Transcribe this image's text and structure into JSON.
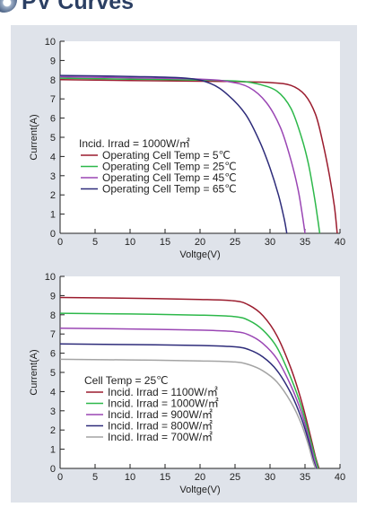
{
  "header": {
    "title": "PV Curves"
  },
  "chart_data": [
    {
      "type": "line",
      "title": "",
      "xlabel": "Voltge(V)",
      "ylabel": "Current(A)",
      "xlim": [
        0,
        40
      ],
      "ylim": [
        0,
        10
      ],
      "xticks": [
        "0",
        "5",
        "10",
        "15",
        "20",
        "25",
        "30",
        "35",
        "40"
      ],
      "yticks": [
        "0",
        "1",
        "2",
        "3",
        "4",
        "5",
        "6",
        "7",
        "8",
        "9",
        "10"
      ],
      "legend_title": "Incid. Irrad = 1000W/㎡",
      "legend_position": "lower-left",
      "grid": false,
      "series": [
        {
          "name": "Operating Cell Temp = 5℃",
          "color": "#9b1c2e",
          "points": [
            [
              0,
              8.0
            ],
            [
              10,
              7.96
            ],
            [
              20,
              7.92
            ],
            [
              25,
              7.9
            ],
            [
              30,
              7.85
            ],
            [
              33,
              7.7
            ],
            [
              35,
              7.2
            ],
            [
              36.5,
              6.2
            ],
            [
              37.5,
              4.8
            ],
            [
              38.5,
              3.0
            ],
            [
              39.2,
              1.4
            ],
            [
              39.6,
              0
            ]
          ]
        },
        {
          "name": "Operating Cell Temp = 25℃",
          "color": "#2db84a",
          "points": [
            [
              0,
              8.08
            ],
            [
              10,
              8.03
            ],
            [
              20,
              7.98
            ],
            [
              25,
              7.93
            ],
            [
              28,
              7.8
            ],
            [
              31,
              7.4
            ],
            [
              33,
              6.5
            ],
            [
              34.5,
              5.0
            ],
            [
              35.5,
              3.6
            ],
            [
              36.3,
              2.0
            ],
            [
              36.8,
              0.8
            ],
            [
              37.1,
              0
            ]
          ]
        },
        {
          "name": "Operating Cell Temp = 45℃",
          "color": "#9a46b4",
          "points": [
            [
              0,
              8.15
            ],
            [
              10,
              8.1
            ],
            [
              20,
              8.03
            ],
            [
              24,
              7.9
            ],
            [
              27,
              7.6
            ],
            [
              29.5,
              6.8
            ],
            [
              31.5,
              5.5
            ],
            [
              33,
              3.8
            ],
            [
              34,
              2.3
            ],
            [
              34.6,
              1.0
            ],
            [
              35,
              0
            ]
          ]
        },
        {
          "name": "Operating Cell Temp = 65℃",
          "color": "#2e2c7a",
          "points": [
            [
              0,
              8.22
            ],
            [
              10,
              8.17
            ],
            [
              18,
              8.08
            ],
            [
              21.5,
              7.8
            ],
            [
              24,
              7.2
            ],
            [
              26.5,
              6.2
            ],
            [
              28.5,
              4.8
            ],
            [
              30,
              3.4
            ],
            [
              31.2,
              2.0
            ],
            [
              32,
              0.8
            ],
            [
              32.4,
              0
            ]
          ]
        }
      ]
    },
    {
      "type": "line",
      "title": "",
      "xlabel": "Voltge(V)",
      "ylabel": "Current(A)",
      "xlim": [
        0,
        40
      ],
      "ylim": [
        0,
        10
      ],
      "xticks": [
        "0",
        "5",
        "10",
        "15",
        "20",
        "25",
        "30",
        "35",
        "40"
      ],
      "yticks": [
        "0",
        "1",
        "2",
        "3",
        "4",
        "5",
        "6",
        "7",
        "8",
        "9",
        "10"
      ],
      "legend_title": "Cell Temp = 25℃",
      "legend_position": "lower-left",
      "grid": false,
      "series": [
        {
          "name": "Incid. Irrad = 1100W/㎡",
          "color": "#9b1c2e",
          "points": [
            [
              0,
              8.9
            ],
            [
              10,
              8.86
            ],
            [
              20,
              8.8
            ],
            [
              25,
              8.72
            ],
            [
              27,
              8.5
            ],
            [
              29,
              7.95
            ],
            [
              31,
              6.9
            ],
            [
              33,
              5.2
            ],
            [
              34.5,
              3.5
            ],
            [
              35.7,
              1.8
            ],
            [
              36.5,
              0.6
            ],
            [
              37.0,
              0
            ]
          ]
        },
        {
          "name": "Incid. Irrad = 1000W/㎡",
          "color": "#2db84a",
          "points": [
            [
              0,
              8.08
            ],
            [
              10,
              8.04
            ],
            [
              20,
              7.98
            ],
            [
              25,
              7.9
            ],
            [
              27,
              7.7
            ],
            [
              29,
              7.2
            ],
            [
              31,
              6.3
            ],
            [
              33,
              4.7
            ],
            [
              34.5,
              3.2
            ],
            [
              35.7,
              1.6
            ],
            [
              36.5,
              0.5
            ],
            [
              36.9,
              0
            ]
          ]
        },
        {
          "name": "Incid. Irrad = 900W/㎡",
          "color": "#9a46b4",
          "points": [
            [
              0,
              7.3
            ],
            [
              10,
              7.26
            ],
            [
              20,
              7.2
            ],
            [
              25,
              7.12
            ],
            [
              27,
              6.95
            ],
            [
              29,
              6.5
            ],
            [
              31,
              5.7
            ],
            [
              33,
              4.3
            ],
            [
              34.5,
              2.9
            ],
            [
              35.6,
              1.5
            ],
            [
              36.3,
              0.5
            ],
            [
              36.7,
              0
            ]
          ]
        },
        {
          "name": "Incid. Irrad = 800W/㎡",
          "color": "#2e2c7a",
          "points": [
            [
              0,
              6.48
            ],
            [
              10,
              6.45
            ],
            [
              20,
              6.4
            ],
            [
              25,
              6.33
            ],
            [
              27,
              6.18
            ],
            [
              29,
              5.8
            ],
            [
              31,
              5.1
            ],
            [
              33,
              3.9
            ],
            [
              34.5,
              2.6
            ],
            [
              35.6,
              1.3
            ],
            [
              36.2,
              0.4
            ],
            [
              36.6,
              0
            ]
          ]
        },
        {
          "name": "Incid. Irrad = 700W/㎡",
          "color": "#a4a4a4",
          "points": [
            [
              0,
              5.68
            ],
            [
              10,
              5.65
            ],
            [
              20,
              5.6
            ],
            [
              25,
              5.54
            ],
            [
              27,
              5.4
            ],
            [
              29,
              5.08
            ],
            [
              31,
              4.5
            ],
            [
              33,
              3.45
            ],
            [
              34.5,
              2.3
            ],
            [
              35.5,
              1.2
            ],
            [
              36.1,
              0.4
            ],
            [
              36.5,
              0
            ]
          ]
        }
      ]
    }
  ]
}
